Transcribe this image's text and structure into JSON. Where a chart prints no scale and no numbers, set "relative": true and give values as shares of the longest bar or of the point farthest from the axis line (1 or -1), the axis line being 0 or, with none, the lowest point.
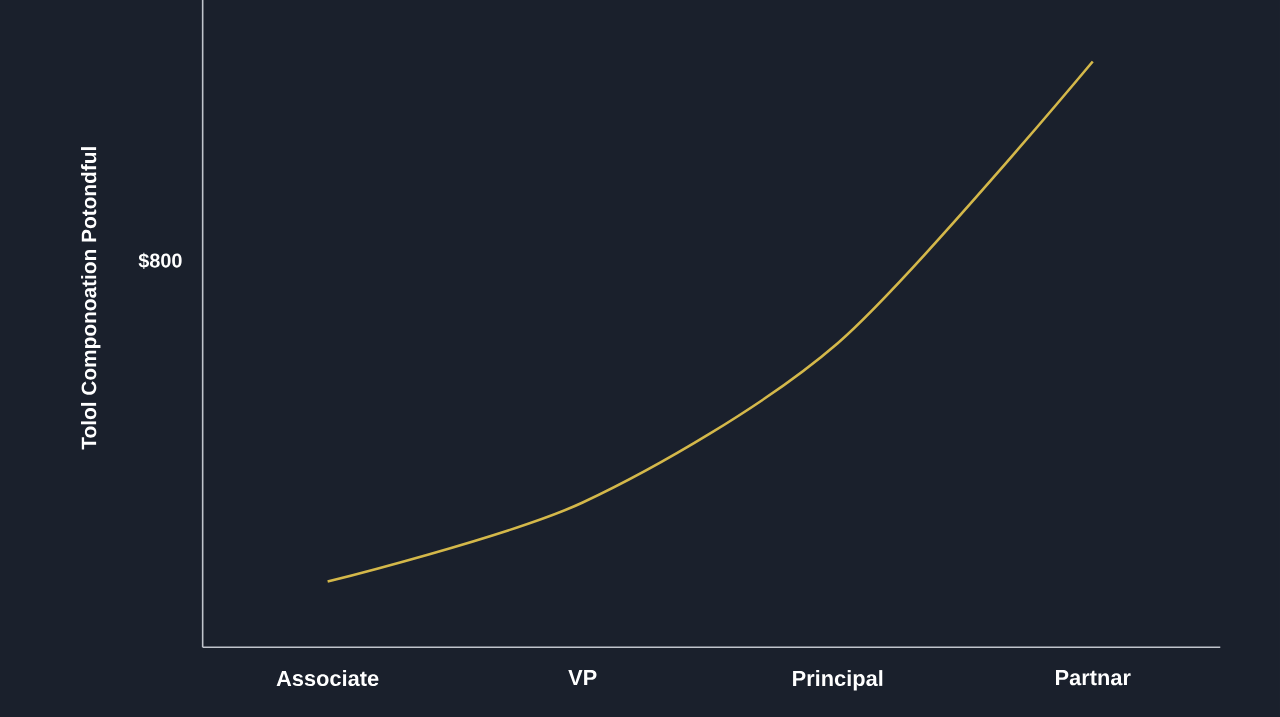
{
  "chart_data": {
    "type": "line",
    "ylabel": "Tolol Componoation Potondful",
    "categories": [
      "Associate",
      "VP",
      "Principal",
      "Partnar"
    ],
    "relative": true,
    "values": [
      0.112,
      0.247,
      0.519,
      1.0
    ],
    "color": "#d4b84a",
    "annotations": [
      "$800"
    ],
    "marker": "none",
    "line_style": "solid"
  }
}
